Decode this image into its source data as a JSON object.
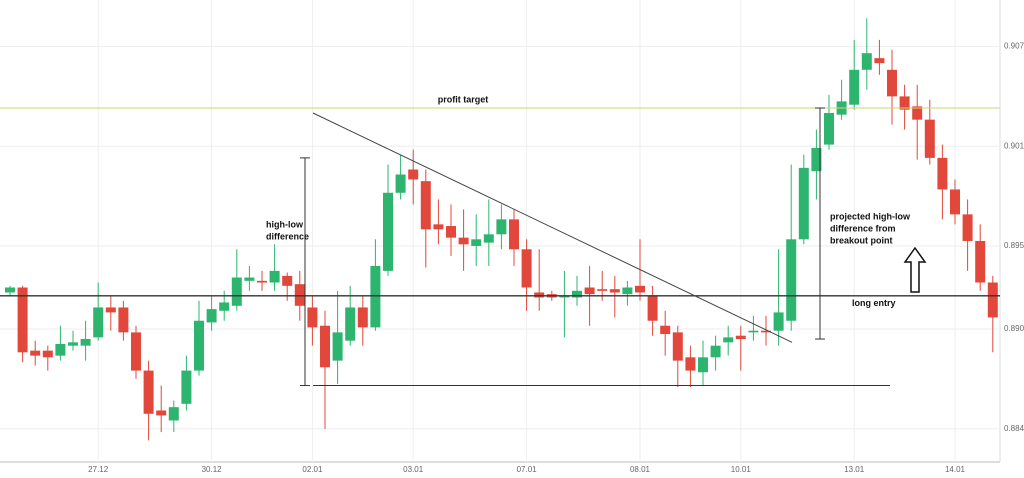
{
  "chart_data": {
    "type": "candlestick",
    "categories": [
      null,
      null,
      null,
      null,
      null,
      null,
      null,
      "27.12",
      null,
      null,
      null,
      null,
      null,
      null,
      null,
      null,
      "30.12",
      null,
      null,
      null,
      null,
      null,
      null,
      null,
      "02.01",
      null,
      null,
      null,
      null,
      null,
      null,
      null,
      "03.01",
      null,
      null,
      null,
      null,
      null,
      null,
      null,
      null,
      "07.01",
      null,
      null,
      null,
      null,
      null,
      null,
      null,
      null,
      "08.01",
      null,
      null,
      null,
      null,
      null,
      null,
      null,
      "10.01",
      null,
      null,
      null,
      null,
      null,
      null,
      null,
      null,
      "13.01",
      null,
      null,
      null,
      null,
      null,
      null,
      null,
      "14.01",
      null,
      null,
      null
    ],
    "open": [
      0.8922,
      0.8925,
      0.8887,
      0.8887,
      0.8884,
      0.889,
      0.889,
      0.8895,
      0.8913,
      0.8913,
      0.8898,
      0.8875,
      0.8851,
      0.8845,
      0.8855,
      0.8875,
      0.8904,
      0.8911,
      0.8914,
      0.8929,
      0.8929,
      0.8928,
      0.8932,
      0.8927,
      0.8913,
      0.8902,
      0.8881,
      0.8893,
      0.8913,
      0.8901,
      0.8935,
      0.8982,
      0.8996,
      0.8989,
      0.8963,
      0.8962,
      0.8955,
      0.895,
      0.8952,
      0.8957,
      0.8966,
      0.8948,
      0.8922,
      0.8921,
      0.8919,
      0.8919,
      0.8925,
      0.8924,
      0.8924,
      0.8921,
      0.8926,
      0.892,
      0.8902,
      0.8898,
      0.8883,
      0.8874,
      0.8883,
      0.8892,
      0.8896,
      0.8898,
      0.8899,
      0.8899,
      0.8905,
      0.8954,
      0.8995,
      0.9011,
      0.9029,
      0.9035,
      0.9056,
      0.9063,
      0.9056,
      0.904,
      0.9034,
      0.9026,
      0.9003,
      0.8984,
      0.8969,
      0.8953,
      0.8928
    ],
    "high": [
      0.8926,
      0.8926,
      0.8893,
      0.889,
      0.8902,
      0.8899,
      0.8905,
      0.8928,
      0.892,
      0.8917,
      0.8902,
      0.8881,
      0.8866,
      0.8857,
      0.8884,
      0.8917,
      0.892,
      0.8923,
      0.8948,
      0.8938,
      0.8935,
      0.8951,
      0.8934,
      0.8935,
      0.892,
      0.8911,
      0.8923,
      0.8926,
      0.892,
      0.8954,
      0.8999,
      0.9005,
      0.9008,
      0.8996,
      0.8978,
      0.8975,
      0.8972,
      0.8969,
      0.8978,
      0.8975,
      0.8972,
      0.8954,
      0.8948,
      0.8923,
      0.8935,
      0.8932,
      0.8938,
      0.8935,
      0.8932,
      0.8929,
      0.8954,
      0.8926,
      0.8911,
      0.8902,
      0.889,
      0.8893,
      0.8896,
      0.8902,
      0.8902,
      0.8908,
      0.8908,
      0.8948,
      0.8999,
      0.9005,
      0.902,
      0.9041,
      0.905,
      0.9074,
      0.9087,
      0.9074,
      0.9068,
      0.9047,
      0.9047,
      0.9038,
      0.9011,
      0.899,
      0.8978,
      0.8963,
      0.8932
    ],
    "low": [
      0.892,
      0.888,
      0.8878,
      0.8875,
      0.8881,
      0.8887,
      0.8881,
      0.8893,
      0.8899,
      0.8893,
      0.887,
      0.8833,
      0.8838,
      0.8838,
      0.8851,
      0.8872,
      0.8899,
      0.8905,
      0.8911,
      0.8923,
      0.8923,
      0.8923,
      0.8917,
      0.8905,
      0.889,
      0.884,
      0.8867,
      0.889,
      0.889,
      0.8899,
      0.8932,
      0.8978,
      0.8975,
      0.8937,
      0.8951,
      0.8944,
      0.8935,
      0.8938,
      0.8938,
      0.8948,
      0.8938,
      0.8911,
      0.8911,
      0.8917,
      0.8895,
      0.8914,
      0.8902,
      0.8917,
      0.8907,
      0.8914,
      0.8917,
      0.8896,
      0.8884,
      0.8865,
      0.8865,
      0.8866,
      0.8875,
      0.8884,
      0.8875,
      0.8893,
      0.889,
      0.889,
      0.8899,
      0.8951,
      0.8978,
      0.9008,
      0.9026,
      0.9032,
      0.9044,
      0.9053,
      0.9023,
      0.902,
      0.9002,
      0.8999,
      0.8966,
      0.8963,
      0.8935,
      0.8923,
      0.8886
    ],
    "close": [
      0.8925,
      0.8886,
      0.8884,
      0.8883,
      0.8891,
      0.8892,
      0.8894,
      0.8913,
      0.891,
      0.8898,
      0.8875,
      0.8849,
      0.8848,
      0.8853,
      0.8875,
      0.8905,
      0.8912,
      0.8916,
      0.8931,
      0.8931,
      0.8928,
      0.8935,
      0.8926,
      0.8914,
      0.8901,
      0.8877,
      0.8898,
      0.8913,
      0.8901,
      0.8938,
      0.8982,
      0.8993,
      0.899,
      0.896,
      0.896,
      0.8955,
      0.8951,
      0.8954,
      0.8957,
      0.8966,
      0.8948,
      0.8925,
      0.8919,
      0.8919,
      0.892,
      0.8923,
      0.8921,
      0.8923,
      0.8922,
      0.8925,
      0.8922,
      0.8905,
      0.8897,
      0.8881,
      0.8875,
      0.8883,
      0.889,
      0.8895,
      0.8894,
      0.8899,
      0.8898,
      0.891,
      0.8954,
      0.8997,
      0.9009,
      0.903,
      0.9037,
      0.9056,
      0.9066,
      0.906,
      0.904,
      0.9032,
      0.9026,
      0.9003,
      0.8984,
      0.8969,
      0.8953,
      0.8928,
      0.8907
    ],
    "up_color": "#2db56f",
    "down_color": "#e1483b",
    "ylim": [
      0.882,
      0.9098
    ],
    "yticks": [
      {
        "value": 0.884,
        "label": "0.8840"
      },
      {
        "value": 0.89,
        "label": "0.8900"
      },
      {
        "value": 0.895,
        "label": "0.8950"
      },
      {
        "value": 0.901,
        "label": "0.9010"
      },
      {
        "value": 0.907,
        "label": "0.9070"
      }
    ],
    "grid": true,
    "levels": [
      {
        "label": "profit target",
        "value": 0.9033,
        "color": "#c9d76c"
      },
      {
        "label": "long entry",
        "value": 0.892,
        "color": "#333333"
      }
    ],
    "support": 0.8866,
    "trendline": [
      0.903,
      0.8892
    ],
    "measurements": [
      {
        "label": [
          "high-low",
          "difference"
        ],
        "from": 0.9003,
        "to": 0.8866
      },
      {
        "label": [
          "projected high-low",
          "difference from",
          "breakout point"
        ],
        "from": 0.9033,
        "to": 0.8894
      }
    ]
  }
}
